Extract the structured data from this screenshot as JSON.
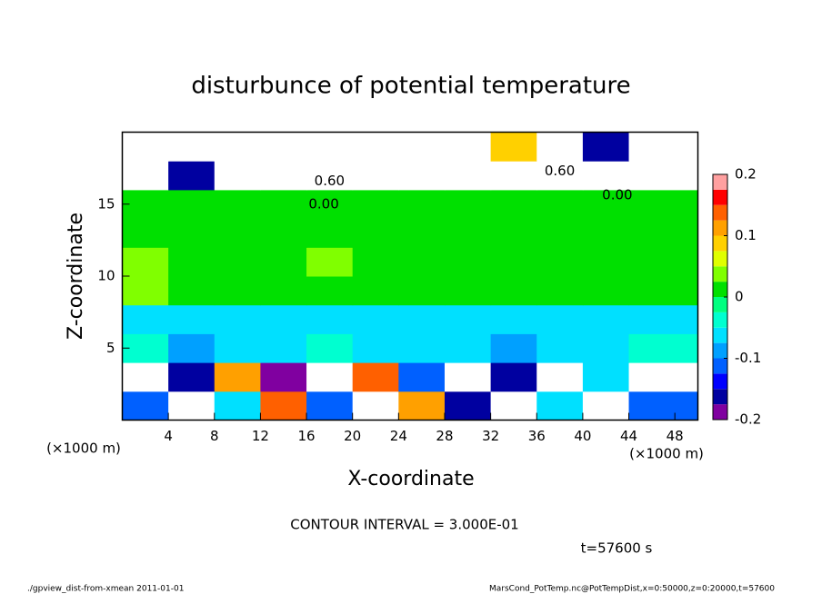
{
  "chart_data": {
    "type": "heatmap",
    "title": "disturbunce of potential temperature",
    "xlabel": "X-coordinate",
    "ylabel": "Z-coordinate",
    "x_unit": "(×1000 m)",
    "y_unit": "(×1000 m)",
    "contour_note": "CONTOUR INTERVAL = 3.000E-01",
    "time_note": "t=57600 s",
    "footer_left": "./gpview_dist-from-xmean  2011-01-01",
    "footer_right": "MarsCond_PotTemp.nc@PotTempDist,x=0:50000,z=0:20000,t=57600",
    "xlim": [
      0,
      50
    ],
    "ylim": [
      0,
      20
    ],
    "xticks": [
      4,
      8,
      12,
      16,
      20,
      24,
      28,
      32,
      36,
      40,
      44,
      48
    ],
    "yticks": [
      5,
      10,
      15
    ],
    "x_edges": [
      0,
      4,
      8,
      12,
      16,
      20,
      24,
      28,
      32,
      36,
      40,
      44,
      50
    ],
    "z_edges": [
      0,
      2,
      4,
      6,
      8,
      10,
      12,
      14,
      16,
      18,
      20
    ],
    "values": [
      [
        -0.1,
        0.3,
        -0.05,
        0.15,
        -0.1,
        0.3,
        0.12,
        -0.15,
        0.3,
        -0.05,
        0.3,
        -0.12
      ],
      [
        0.3,
        -0.15,
        0.12,
        -0.2,
        0.3,
        0.15,
        -0.1,
        0.3,
        -0.15,
        0.3,
        -0.05,
        0.3
      ],
      [
        -0.03,
        -0.08,
        -0.05,
        -0.06,
        -0.04,
        -0.05,
        -0.06,
        -0.05,
        -0.08,
        -0.05,
        -0.06,
        -0.04
      ],
      [
        -0.05,
        -0.06,
        -0.05,
        -0.05,
        -0.06,
        -0.05,
        -0.05,
        -0.06,
        -0.05,
        -0.05,
        -0.06,
        -0.05
      ],
      [
        0.03,
        0.02,
        0.02,
        0.02,
        0.02,
        0.02,
        0.02,
        0.02,
        0.02,
        0.02,
        0.02,
        0.02
      ],
      [
        0.05,
        0.02,
        0.02,
        0.02,
        0.05,
        0.02,
        0.02,
        0.02,
        0.02,
        0.02,
        0.02,
        0.02
      ],
      [
        0.02,
        0.02,
        0.02,
        0.02,
        0.02,
        0.02,
        0.02,
        0.02,
        0.02,
        0.02,
        0.02,
        0.02
      ],
      [
        0.02,
        0.02,
        0.02,
        0.02,
        0.02,
        0.02,
        0.02,
        0.02,
        0.02,
        0.02,
        0.02,
        0.02
      ],
      [
        0.3,
        -0.15,
        0.3,
        0.3,
        0.3,
        0.3,
        0.3,
        0.3,
        0.3,
        0.3,
        0.3,
        0.3
      ],
      [
        0.3,
        0.3,
        0.3,
        0.3,
        0.3,
        0.3,
        0.3,
        0.3,
        0.1,
        0.3,
        -0.15,
        0.3
      ]
    ],
    "colorbar_levels": [
      -0.2,
      -0.175,
      -0.15,
      -0.125,
      -0.1,
      -0.075,
      -0.05,
      -0.025,
      0,
      0.025,
      0.05,
      0.075,
      0.1,
      0.125,
      0.15,
      0.175,
      0.2
    ],
    "colors": [
      "#8000a0",
      "#0000a0",
      "#0000ff",
      "#0060ff",
      "#00a0ff",
      "#00e0ff",
      "#00ffd0",
      "#00ff80",
      "#00e000",
      "#80ff00",
      "#e0ff00",
      "#ffd000",
      "#ffa000",
      "#ff6000",
      "#ff0000",
      "#ffa0a0"
    ],
    "colorbar_ticks": [
      -0.2,
      -0.1,
      0,
      0.1,
      0.2
    ],
    "contour_labels": [
      {
        "text": "0.00",
        "x": 17.5,
        "z": 15
      },
      {
        "text": "0.00",
        "x": 43,
        "z": 15.6
      },
      {
        "text": "0.60",
        "x": 18,
        "z": 16.6
      },
      {
        "text": "0.60",
        "x": 38,
        "z": 17.3
      }
    ]
  }
}
